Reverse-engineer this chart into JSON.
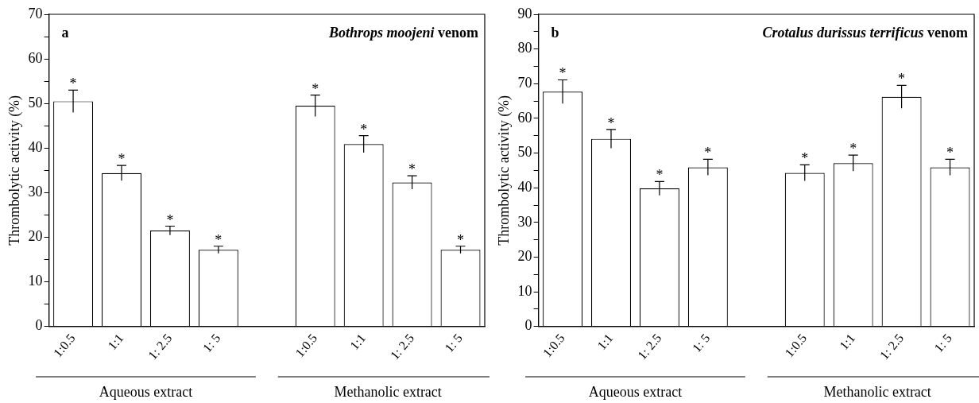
{
  "chart_data": [
    {
      "type": "bar",
      "title": "Bothrops moojeni venom",
      "ylabel": "Thrombolytic activity (%)",
      "annotations": [
        "a",
        "Aqueous extract",
        "Methanolic extract"
      ],
      "categories": [
        "1:0.5",
        "1:1",
        "1: 2.5",
        "1: 5",
        null,
        "1:0.5",
        "1:1",
        "1: 2.5",
        "1: 5"
      ],
      "values": [
        50.5,
        34.4,
        21.5,
        17.2,
        null,
        49.5,
        40.9,
        32.3,
        17.2
      ],
      "errors": [
        2.5,
        1.7,
        1.0,
        0.8,
        null,
        2.4,
        1.9,
        1.5,
        0.8
      ],
      "value_labels": [
        "*",
        "*",
        "*",
        "*",
        null,
        "*",
        "*",
        "*",
        "*"
      ],
      "color": "#ffffff",
      "ylim": [
        0,
        70
      ],
      "yticks": [
        0,
        {
          "value": 5,
          "label": null
        },
        10,
        {
          "value": 15,
          "label": null
        },
        20,
        {
          "value": 25,
          "label": null
        },
        30,
        {
          "value": 35,
          "label": null
        },
        40,
        {
          "value": 45,
          "label": null
        },
        50,
        {
          "value": 55,
          "label": null
        },
        60,
        {
          "value": 65,
          "label": null
        },
        70
      ]
    },
    {
      "type": "bar",
      "title": "Crotalus durissus terrificus venom",
      "ylabel": "Thrombolytic activity (%)",
      "annotations": [
        "b",
        "Aqueous extract",
        "Methanolic extract"
      ],
      "categories": [
        "1:0.5",
        "1:1",
        "1: 2.5",
        "1: 5",
        null,
        "1:0.5",
        "1:1",
        "1: 2.5",
        "1: 5"
      ],
      "values": [
        67.7,
        54.1,
        39.8,
        45.9,
        null,
        44.3,
        47.1,
        66.2,
        45.9
      ],
      "errors": [
        3.4,
        2.7,
        2.0,
        2.3,
        null,
        2.3,
        2.3,
        3.3,
        2.3
      ],
      "value_labels": [
        "*",
        "*",
        "*",
        "*",
        null,
        "*",
        "*",
        "*",
        "*"
      ],
      "color": "#ffffff",
      "ylim": [
        0,
        90
      ],
      "yticks": [
        0,
        {
          "value": 5,
          "label": null
        },
        10,
        {
          "value": 15,
          "label": null
        },
        20,
        {
          "value": 25,
          "label": null
        },
        30,
        {
          "value": 35,
          "label": null
        },
        40,
        {
          "value": 45,
          "label": null
        },
        50,
        {
          "value": 55,
          "label": null
        },
        60,
        {
          "value": 65,
          "label": null
        },
        70,
        {
          "value": 75,
          "label": null
        },
        80,
        {
          "value": 85,
          "label": null
        },
        90
      ]
    }
  ]
}
